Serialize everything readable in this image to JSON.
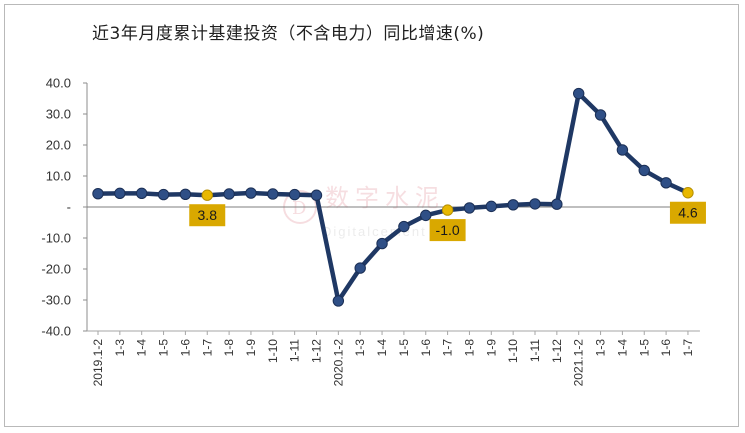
{
  "chart_data": {
    "type": "line",
    "title": "近3年月度累计基建投资（不含电力）同比增速(%)",
    "xlabel": "",
    "ylabel": "",
    "ylim": [
      -40,
      40
    ],
    "yticks": [
      {
        "value": 40,
        "label": "40.0"
      },
      {
        "value": 30,
        "label": "30.0"
      },
      {
        "value": 20,
        "label": "20.0"
      },
      {
        "value": 10,
        "label": "10.0"
      },
      {
        "value": 0,
        "label": "-"
      },
      {
        "value": -10,
        "label": "-10.0"
      },
      {
        "value": -20,
        "label": "-20.0"
      },
      {
        "value": -30,
        "label": "-30.0"
      },
      {
        "value": -40,
        "label": "-40.0"
      }
    ],
    "categories": [
      "2019.1-2",
      "1-3",
      "1-4",
      "1-5",
      "1-6",
      "1-7",
      "1-8",
      "1-9",
      "1-10",
      "1-11",
      "1-12",
      "2020.1-2",
      "1-3",
      "1-4",
      "1-5",
      "1-6",
      "1-7",
      "1-8",
      "1-9",
      "1-10",
      "1-11",
      "1-12",
      "2021.1-2",
      "1-3",
      "1-4",
      "1-5",
      "1-6",
      "1-7"
    ],
    "values": [
      4.3,
      4.4,
      4.4,
      4.0,
      4.1,
      3.8,
      4.2,
      4.5,
      4.2,
      4.0,
      3.8,
      -30.3,
      -19.7,
      -11.8,
      -6.3,
      -2.7,
      -1.0,
      -0.3,
      0.2,
      0.7,
      1.0,
      0.9,
      36.6,
      29.7,
      18.4,
      11.8,
      7.8,
      4.6
    ],
    "highlights": [
      {
        "index": 5,
        "label": "3.8"
      },
      {
        "index": 16,
        "label": "-1.0"
      },
      {
        "index": 27,
        "label": "4.6"
      }
    ],
    "grid": false,
    "legend": "none",
    "colors": {
      "line": "#1f3864",
      "marker": "#2f4f86",
      "highlight": "#e8b800",
      "label_bg": "#d9a800"
    }
  },
  "watermark": {
    "text": "数字水泥",
    "subtext": "Digitalcement"
  }
}
